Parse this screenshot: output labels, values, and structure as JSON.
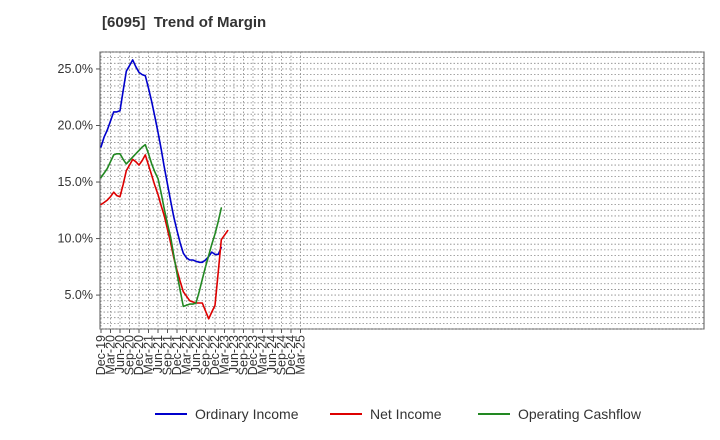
{
  "chart_data": {
    "type": "line",
    "title": "[6095]  Trend of Margin",
    "xlabel": "",
    "ylabel": "",
    "ylim": [
      2.0,
      26.5
    ],
    "y_ticks": [
      {
        "value": 5,
        "label": "5.0%"
      },
      {
        "value": 10,
        "label": "10.0%"
      },
      {
        "value": 15,
        "label": "15.0%"
      },
      {
        "value": 20,
        "label": "20.0%"
      },
      {
        "value": 25,
        "label": "25.0%"
      }
    ],
    "x_tick_labels": [
      "Dec-19",
      "Mar-20",
      "Jun-20",
      "Sep-20",
      "Dec-20",
      "Mar-21",
      "Jun-21",
      "Sep-21",
      "Dec-21",
      "Mar-22",
      "Jun-22",
      "Sep-22",
      "Dec-22",
      "Mar-23",
      "Jun-23",
      "Sep-23",
      "Dec-23",
      "Mar-24",
      "Jun-24",
      "Sep-24",
      "Dec-24",
      "Mar-25"
    ],
    "x_quarter_count": 22,
    "grid": true,
    "legend_position": "bottom",
    "series": [
      {
        "name": "Ordinary Income",
        "color": "#0000cc",
        "start_index": 0,
        "values": [
          18.1,
          19.0,
          19.6,
          20.4,
          21.2,
          21.2,
          21.3,
          23.1,
          24.8,
          25.3,
          25.8,
          25.2,
          24.7,
          24.5,
          24.4,
          23.3,
          22.1,
          20.8,
          19.4,
          17.9,
          16.3,
          14.8,
          13.3,
          11.9,
          10.7,
          9.6,
          8.7,
          8.3,
          8.1,
          8.1,
          8.0,
          7.9,
          7.9,
          8.1,
          8.4,
          8.8,
          8.6,
          8.6,
          9.2
        ]
      },
      {
        "name": "Net Income",
        "color": "#dd0000",
        "start_index": 0,
        "values": [
          13.0,
          13.2,
          13.4,
          13.7,
          14.1,
          13.8,
          13.7,
          14.8,
          16.0,
          16.5,
          17.0,
          16.8,
          16.5,
          16.9,
          17.4,
          16.5,
          15.6,
          14.7,
          13.9,
          12.9,
          12.0,
          10.8,
          9.6,
          8.3,
          7.2,
          6.2,
          5.3,
          4.9,
          4.5,
          4.4,
          4.3,
          4.3,
          4.3,
          3.6,
          2.9,
          3.5,
          4.1,
          7.0,
          9.9,
          10.3,
          10.7
        ]
      },
      {
        "name": "Operating Cashflow",
        "color": "#228822",
        "start_index": 0,
        "values": [
          15.4,
          15.8,
          16.2,
          16.8,
          17.4,
          17.5,
          17.5,
          17.0,
          16.6,
          16.9,
          17.2,
          17.5,
          17.8,
          18.1,
          18.3,
          17.5,
          16.6,
          15.9,
          15.3,
          14.0,
          12.6,
          11.3,
          10.1,
          8.5,
          6.9,
          5.4,
          4.0,
          4.1,
          4.2,
          4.2,
          4.3,
          5.3,
          6.4,
          7.5,
          8.5,
          9.5,
          10.4,
          11.5,
          12.7
        ]
      }
    ]
  }
}
